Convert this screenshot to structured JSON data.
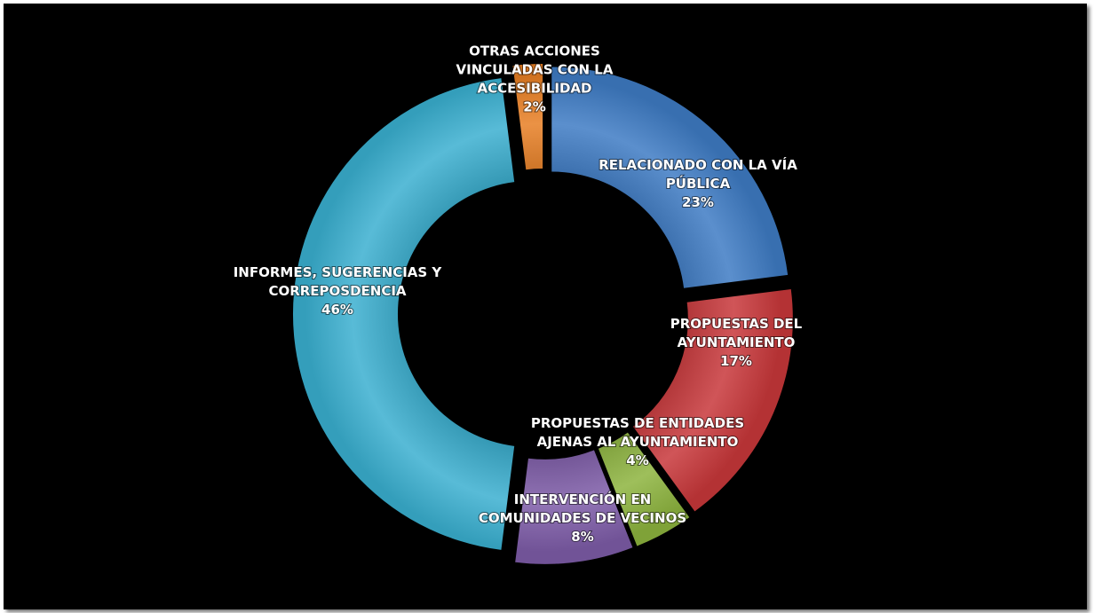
{
  "chart_data": {
    "type": "pie",
    "style": "exploded-donut",
    "title": "",
    "slices": [
      {
        "label_lines": [
          "RELACIONADO CON LA VÍA",
          "PÚBLICA"
        ],
        "value": 23,
        "value_label": "23%",
        "color": "#3E7BC4"
      },
      {
        "label_lines": [
          "PROPUESTAS DEL",
          "AYUNTAMIENTO"
        ],
        "value": 17,
        "value_label": "17%",
        "color": "#C8373A"
      },
      {
        "label_lines": [
          "PROPUESTAS DE ENTIDADES",
          "AJENAS AL AYUNTAMIENTO"
        ],
        "value": 4,
        "value_label": "4%",
        "color": "#8DB43E"
      },
      {
        "label_lines": [
          "INTERVENCIÓN EN",
          "COMUNIDADES DE VECINOS"
        ],
        "value": 8,
        "value_label": "8%",
        "color": "#7E5CA8"
      },
      {
        "label_lines": [
          "INFORMES, SUGERENCIAS Y",
          "CORREPOSDENCIA"
        ],
        "value": 46,
        "value_label": "46%",
        "color": "#3AAFD0"
      },
      {
        "label_lines": [
          "OTRAS ACCIONES",
          "VINCULADAS CON LA",
          "ACCESIBILIDAD"
        ],
        "value": 2,
        "value_label": "2%",
        "color": "#E77F24"
      }
    ],
    "legend": "none"
  }
}
